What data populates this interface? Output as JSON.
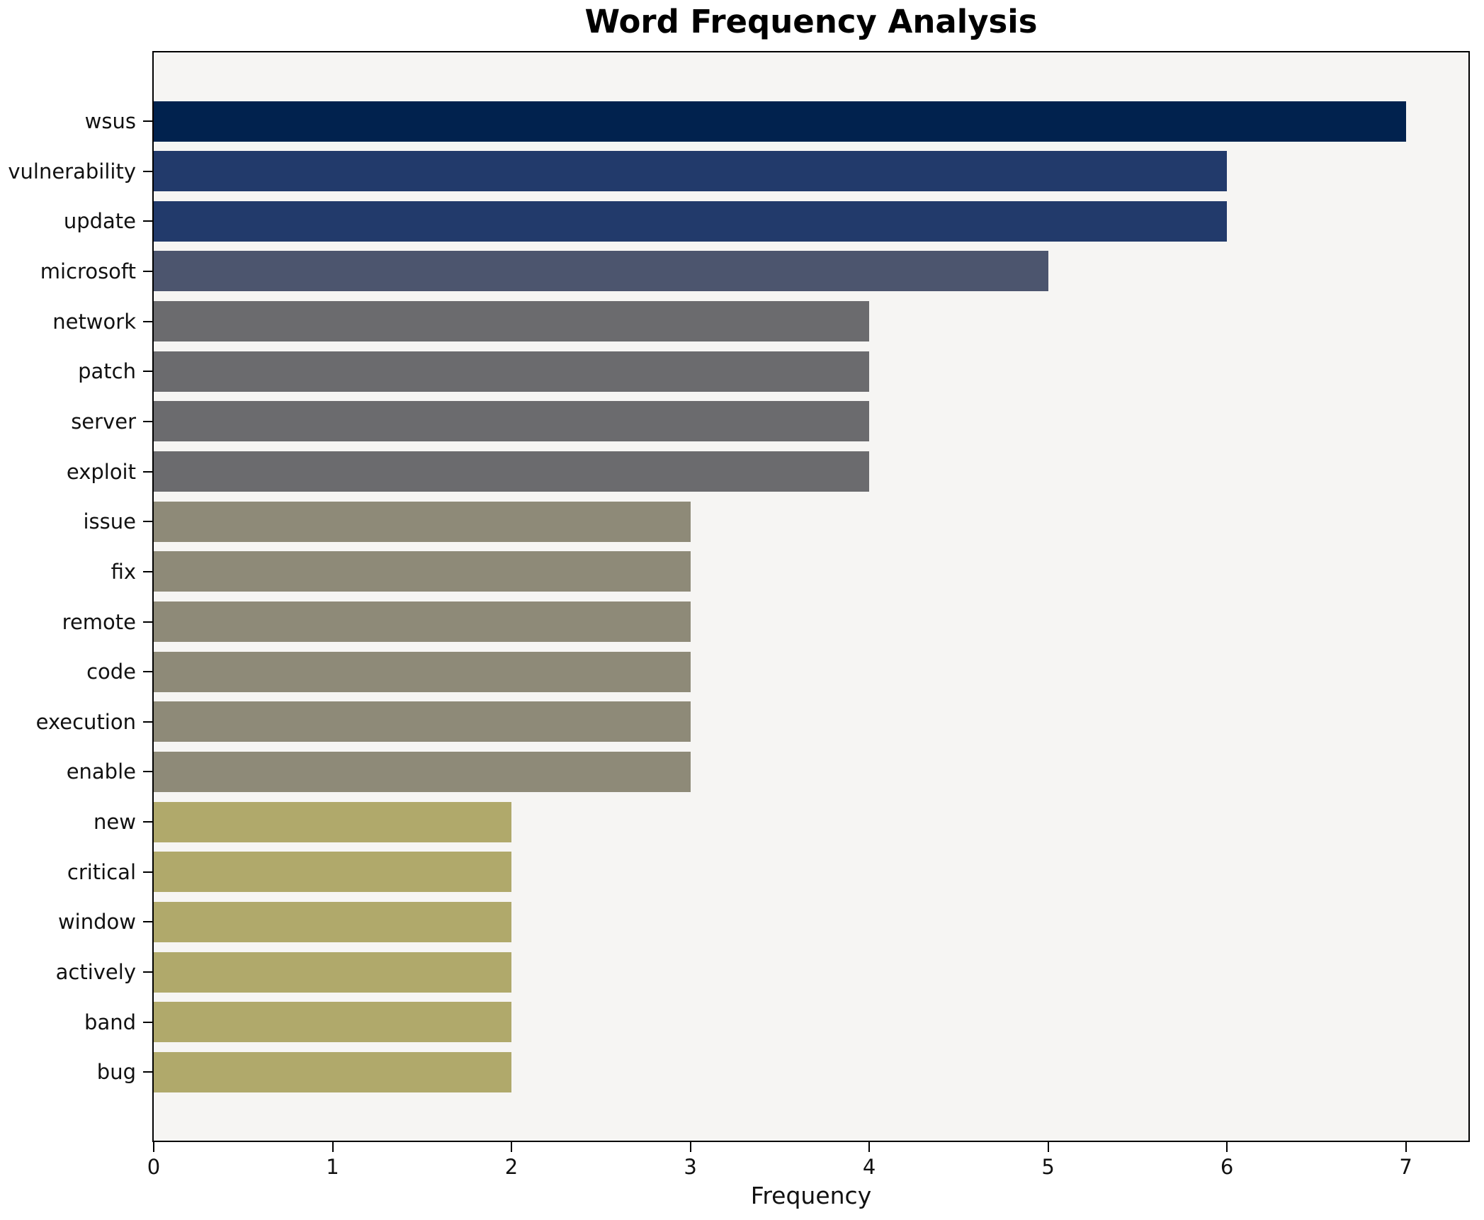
{
  "chart_data": {
    "type": "bar",
    "orientation": "horizontal",
    "title": "Word Frequency Analysis",
    "xlabel": "Frequency",
    "ylabel": "",
    "categories": [
      "wsus",
      "vulnerability",
      "update",
      "microsoft",
      "network",
      "patch",
      "server",
      "exploit",
      "issue",
      "fix",
      "remote",
      "code",
      "execution",
      "enable",
      "new",
      "critical",
      "window",
      "actively",
      "band",
      "bug"
    ],
    "values": [
      7,
      6,
      6,
      5,
      4,
      4,
      4,
      4,
      3,
      3,
      3,
      3,
      3,
      3,
      2,
      2,
      2,
      2,
      2,
      2
    ],
    "xticks": [
      0,
      1,
      2,
      3,
      4,
      5,
      6,
      7
    ],
    "xlim": [
      0,
      7.35
    ],
    "grid": false,
    "legend": null,
    "colors": {
      "value_to_color": {
        "7": "#01224E",
        "6": "#223A6B",
        "5": "#4C556E",
        "4": "#6B6B6E",
        "3": "#8E8A78",
        "2": "#B0A96B"
      },
      "plot_background": "#F6F5F3",
      "figure_background": "#FFFFFF",
      "spine": "#000000",
      "text": "#111111"
    }
  }
}
